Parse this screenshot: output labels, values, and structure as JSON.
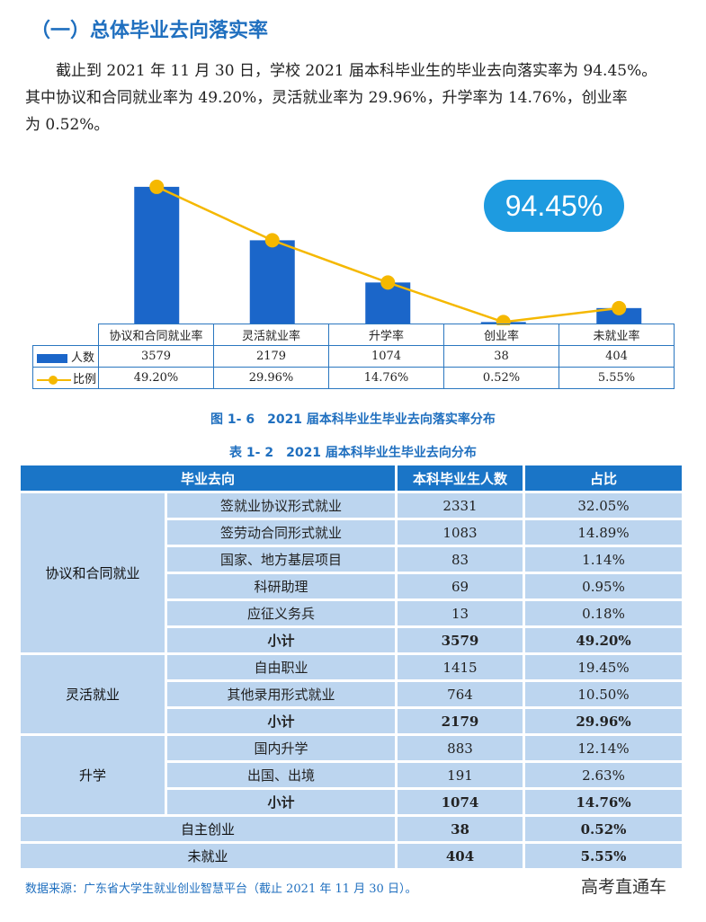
{
  "heading": "（一）总体毕业去向落实率",
  "paragraph_lines": [
    "截止到 2021 年 11 月 30 日，学校 2021 届本科毕业生的毕业去向落实率为 94.45%。",
    "其中协议和合同就业率为 49.20%，灵活就业率为 29.96%，升学率为 14.76%，创业率",
    "为 0.52%。"
  ],
  "badge": "94.45%",
  "chart_data": {
    "type": "bar",
    "title": "图 1- 6　2021 届本科毕业生毕业去向落实率分布",
    "categories": [
      "协议和合同就业率",
      "灵活就业率",
      "升学率",
      "创业率",
      "未就业率"
    ],
    "series": [
      {
        "name": "人数",
        "type": "bar",
        "values": [
          3579,
          2179,
          1074,
          38,
          404
        ],
        "labels": [
          "3579",
          "2179",
          "1074",
          "38",
          "404"
        ]
      },
      {
        "name": "比例",
        "type": "line",
        "values": [
          49.2,
          29.96,
          14.76,
          0.52,
          5.55
        ],
        "labels": [
          "49.20%",
          "29.96%",
          "14.76%",
          "0.52%",
          "5.55%"
        ]
      }
    ],
    "ylim": [
      0,
      4000
    ],
    "y2lim": [
      0,
      55
    ],
    "colors": {
      "bar": "#1b66c9",
      "line": "#f5b800"
    }
  },
  "table": {
    "title": "表 1- 2　2021 届本科毕业生毕业去向分布",
    "headers": [
      "毕业去向",
      "本科毕业生人数",
      "占比"
    ],
    "groups": [
      {
        "category": "协议和合同就业",
        "rows": [
          {
            "name": "签就业协议形式就业",
            "count": "2331",
            "pct": "32.05%"
          },
          {
            "name": "签劳动合同形式就业",
            "count": "1083",
            "pct": "14.89%"
          },
          {
            "name": "国家、地方基层项目",
            "count": "83",
            "pct": "1.14%"
          },
          {
            "name": "科研助理",
            "count": "69",
            "pct": "0.95%"
          },
          {
            "name": "应征义务兵",
            "count": "13",
            "pct": "0.18%"
          }
        ],
        "subtotal": {
          "name": "小计",
          "count": "3579",
          "pct": "49.20%"
        }
      },
      {
        "category": "灵活就业",
        "rows": [
          {
            "name": "自由职业",
            "count": "1415",
            "pct": "19.45%"
          },
          {
            "name": "其他录用形式就业",
            "count": "764",
            "pct": "10.50%"
          }
        ],
        "subtotal": {
          "name": "小计",
          "count": "2179",
          "pct": "29.96%"
        }
      },
      {
        "category": "升学",
        "rows": [
          {
            "name": "国内升学",
            "count": "883",
            "pct": "12.14%"
          },
          {
            "name": "出国、出境",
            "count": "191",
            "pct": "2.63%"
          }
        ],
        "subtotal": {
          "name": "小计",
          "count": "1074",
          "pct": "14.76%"
        }
      }
    ],
    "singles": [
      {
        "name": "自主创业",
        "count": "38",
        "pct": "0.52%"
      },
      {
        "name": "未就业",
        "count": "404",
        "pct": "5.55%"
      }
    ]
  },
  "source": "数据来源：广东省大学生就业创业智慧平台（截止 2021 年 11 月 30 日）。",
  "watermark": "高考直通车"
}
